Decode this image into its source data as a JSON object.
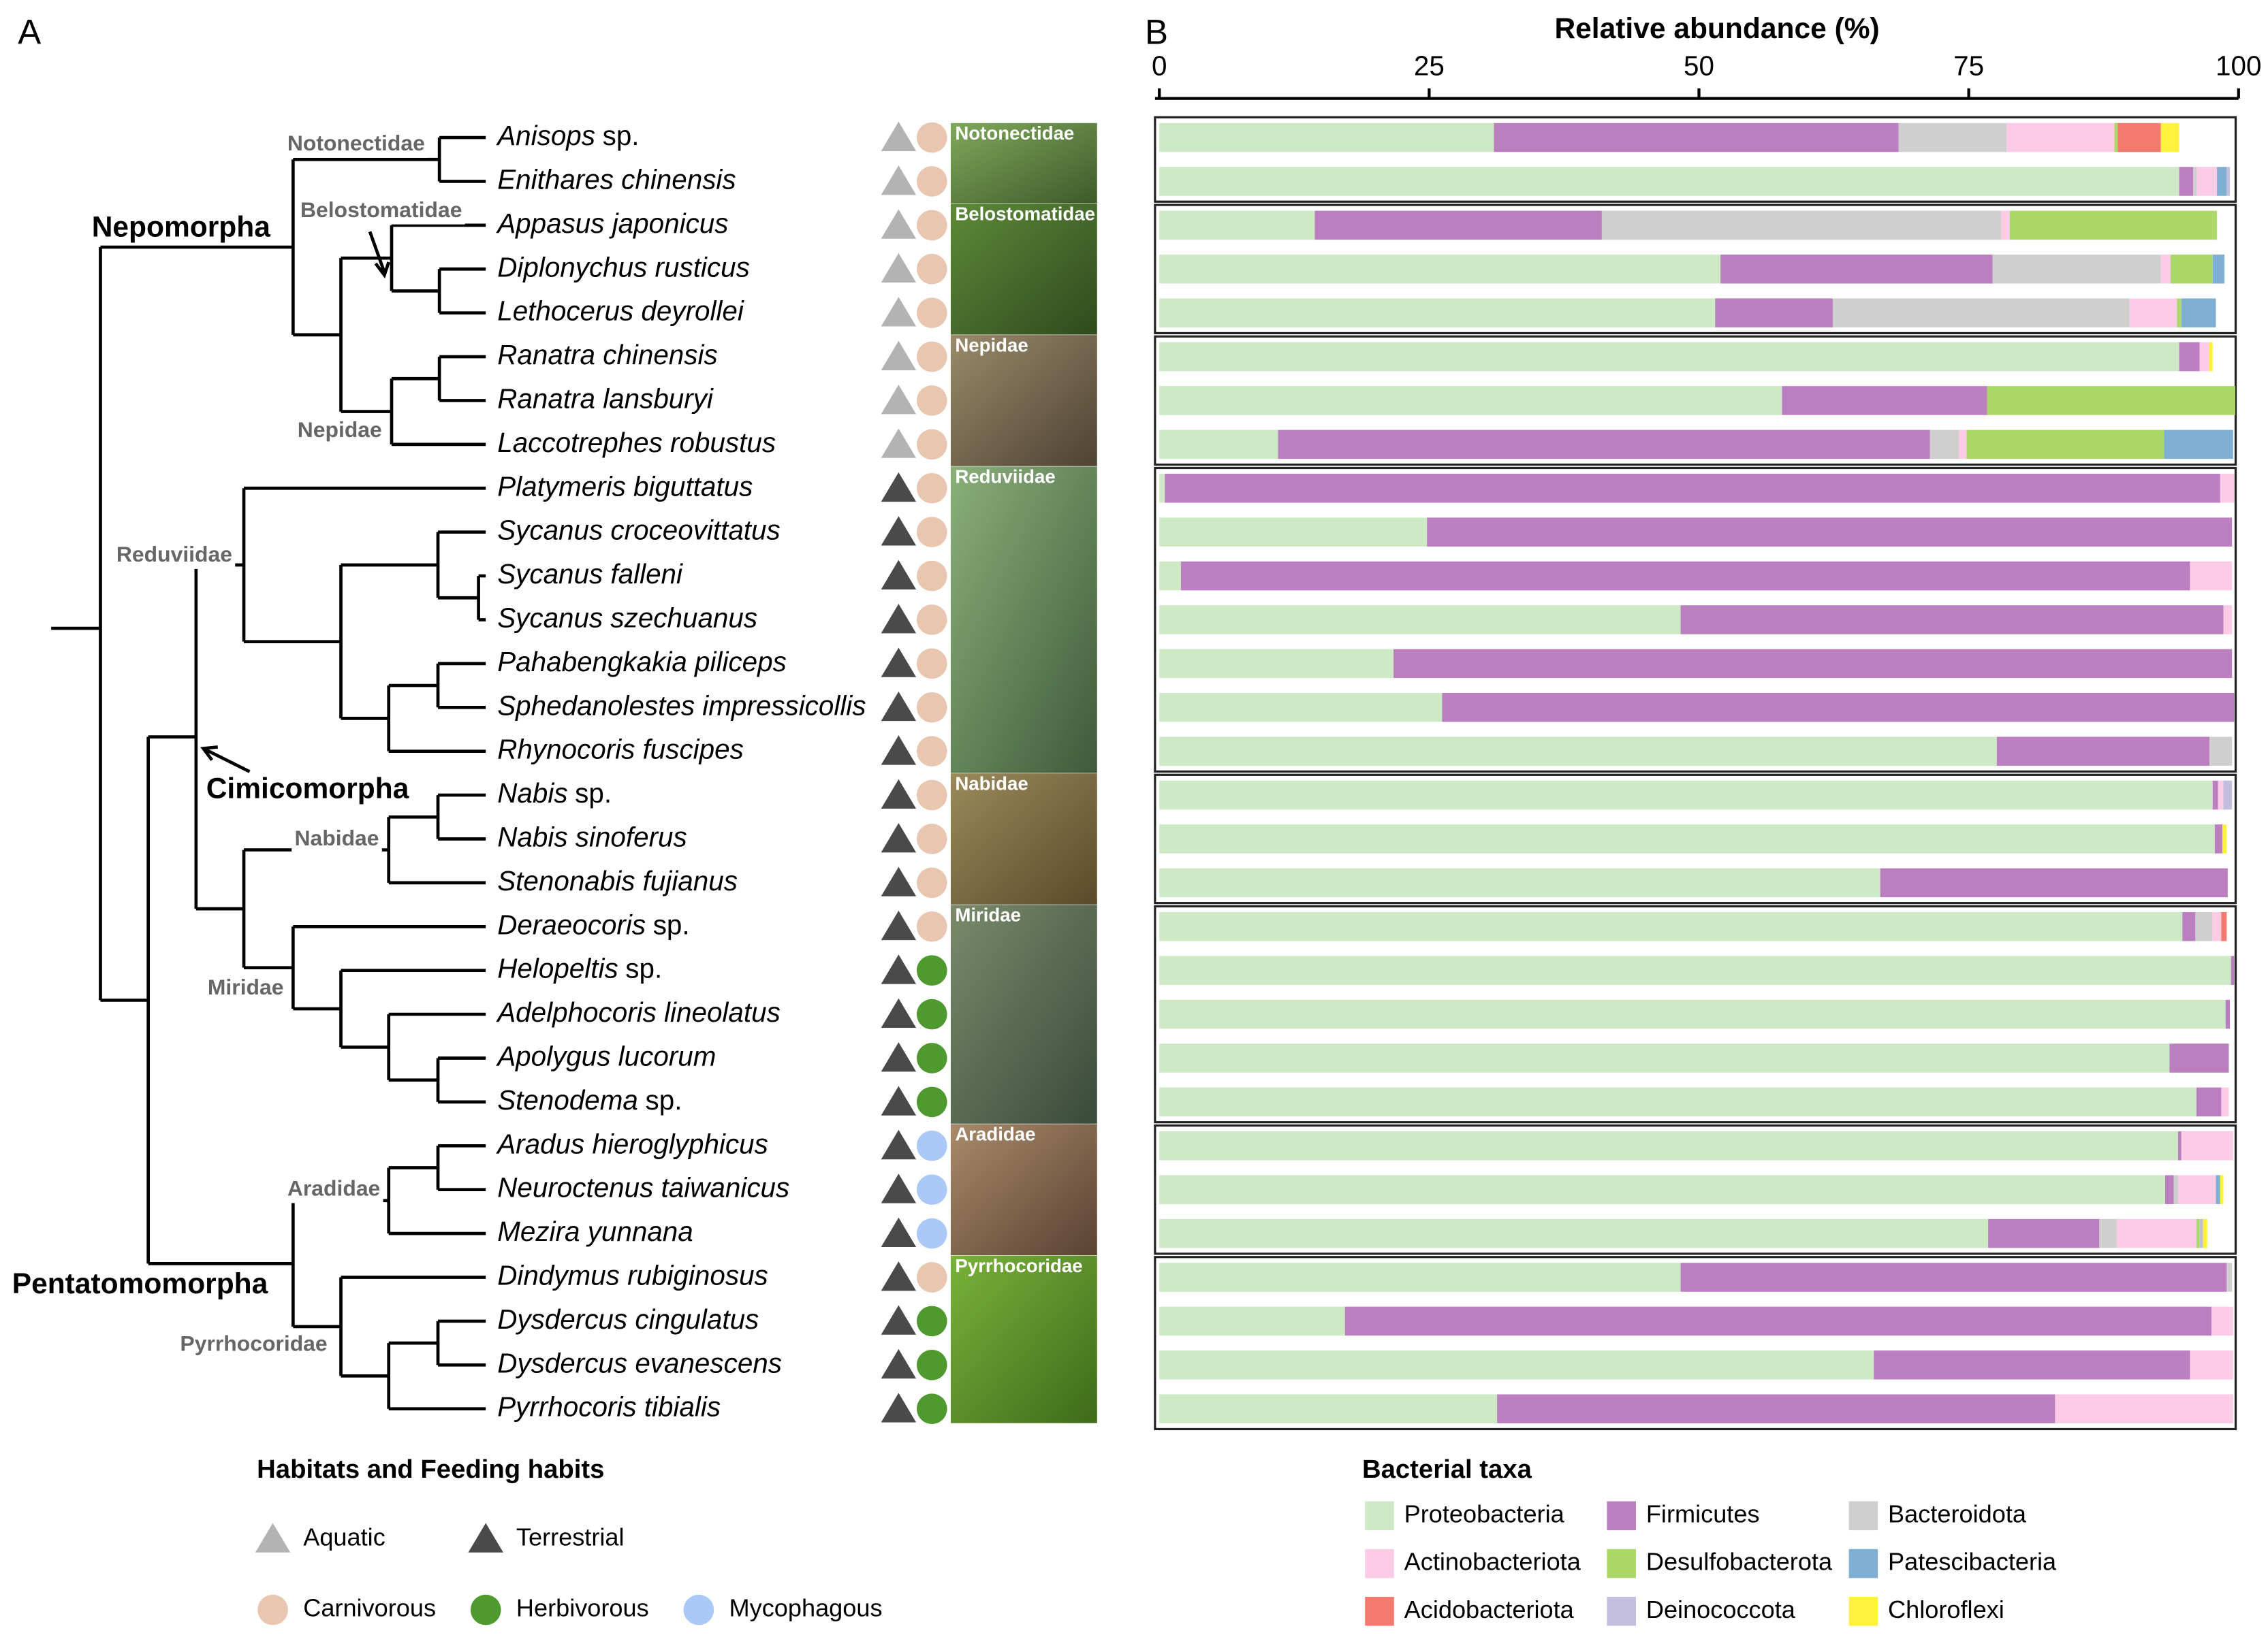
{
  "panel_a": {
    "label": "A",
    "suborders": [
      "Nepomorpha",
      "Cimicomorpha",
      "Pentatomomorpha"
    ],
    "families": [
      "Notonectidae",
      "Belostomatidae",
      "Nepidae",
      "Reduviidae",
      "Nabidae",
      "Miridae",
      "Aradidae",
      "Pyrrhocoridae"
    ],
    "species": [
      {
        "name": "Anisops",
        "suffix": "sp.",
        "habitat": "Aquatic",
        "feeding": "Carnivorous"
      },
      {
        "name": "Enithares chinensis",
        "habitat": "Aquatic",
        "feeding": "Carnivorous"
      },
      {
        "name": "Appasus japonicus",
        "habitat": "Aquatic",
        "feeding": "Carnivorous"
      },
      {
        "name": "Diplonychus rusticus",
        "habitat": "Aquatic",
        "feeding": "Carnivorous"
      },
      {
        "name": "Lethocerus deyrollei",
        "habitat": "Aquatic",
        "feeding": "Carnivorous"
      },
      {
        "name": "Ranatra chinensis",
        "habitat": "Aquatic",
        "feeding": "Carnivorous"
      },
      {
        "name": "Ranatra lansburyi",
        "habitat": "Aquatic",
        "feeding": "Carnivorous"
      },
      {
        "name": "Laccotrephes robustus",
        "habitat": "Aquatic",
        "feeding": "Carnivorous"
      },
      {
        "name": "Platymeris biguttatus",
        "habitat": "Terrestrial",
        "feeding": "Carnivorous"
      },
      {
        "name": "Sycanus croceovittatus",
        "habitat": "Terrestrial",
        "feeding": "Carnivorous"
      },
      {
        "name": "Sycanus falleni",
        "habitat": "Terrestrial",
        "feeding": "Carnivorous"
      },
      {
        "name": "Sycanus szechuanus",
        "habitat": "Terrestrial",
        "feeding": "Carnivorous"
      },
      {
        "name": "Pahabengkakia piliceps",
        "habitat": "Terrestrial",
        "feeding": "Carnivorous"
      },
      {
        "name": "Sphedanolestes impressicollis",
        "habitat": "Terrestrial",
        "feeding": "Carnivorous"
      },
      {
        "name": "Rhynocoris fuscipes",
        "habitat": "Terrestrial",
        "feeding": "Carnivorous"
      },
      {
        "name": "Nabis",
        "suffix": "sp.",
        "habitat": "Terrestrial",
        "feeding": "Carnivorous"
      },
      {
        "name": "Nabis sinoferus",
        "habitat": "Terrestrial",
        "feeding": "Carnivorous"
      },
      {
        "name": "Stenonabis fujianus",
        "habitat": "Terrestrial",
        "feeding": "Carnivorous"
      },
      {
        "name": "Deraeocoris",
        "suffix": "sp.",
        "habitat": "Terrestrial",
        "feeding": "Carnivorous"
      },
      {
        "name": "Helopeltis",
        "suffix": "sp.",
        "habitat": "Terrestrial",
        "feeding": "Herbivorous"
      },
      {
        "name": "Adelphocoris lineolatus",
        "habitat": "Terrestrial",
        "feeding": "Herbivorous"
      },
      {
        "name": "Apolygus lucorum",
        "habitat": "Terrestrial",
        "feeding": "Herbivorous"
      },
      {
        "name": "Stenodema",
        "suffix": "sp.",
        "habitat": "Terrestrial",
        "feeding": "Herbivorous"
      },
      {
        "name": "Aradus hieroglyphicus",
        "habitat": "Terrestrial",
        "feeding": "Mycophagous"
      },
      {
        "name": "Neuroctenus taiwanicus",
        "habitat": "Terrestrial",
        "feeding": "Mycophagous"
      },
      {
        "name": "Mezira yunnana",
        "habitat": "Terrestrial",
        "feeding": "Mycophagous"
      },
      {
        "name": "Dindymus rubiginosus",
        "habitat": "Terrestrial",
        "feeding": "Carnivorous"
      },
      {
        "name": "Dysdercus cingulatus",
        "habitat": "Terrestrial",
        "feeding": "Herbivorous"
      },
      {
        "name": "Dysdercus evanescens",
        "habitat": "Terrestrial",
        "feeding": "Herbivorous"
      },
      {
        "name": "Pyrrhocoris tibialis",
        "habitat": "Terrestrial",
        "feeding": "Herbivorous"
      }
    ],
    "legend_title": "Habitats and Feeding habits",
    "habitats": [
      {
        "name": "Aquatic",
        "color": "#b3b3b3"
      },
      {
        "name": "Terrestrial",
        "color": "#4a4a4a"
      }
    ],
    "feedings": [
      {
        "name": "Carnivorous",
        "color": "#e8c6b0"
      },
      {
        "name": "Herbivorous",
        "color": "#4e9a2e"
      },
      {
        "name": "Mycophagous",
        "color": "#abc9f6"
      }
    ]
  },
  "chart_data": {
    "type": "stacked_barh",
    "label": "B",
    "title": "Relative abundance (%)",
    "xlim": [
      0,
      100
    ],
    "xticks": [
      0,
      25,
      50,
      75,
      100
    ],
    "legend_title": "Bacterial taxa",
    "series": [
      {
        "name": "Proteobacteria",
        "color": "#cde9c6",
        "values": [
          31,
          94.5,
          14.4,
          52,
          51.5,
          94.5,
          57.7,
          11,
          0.5,
          24.8,
          2,
          48.3,
          21.7,
          26.2,
          77.6,
          97.6,
          97.8,
          66.8,
          94.8,
          99.3,
          98.8,
          93.6,
          96.1,
          94.4,
          93.2,
          76.8,
          48.3,
          17.2,
          66.2,
          31.3
        ]
      },
      {
        "name": "Firmicutes",
        "color": "#bb7fbf",
        "values": [
          37.5,
          1.3,
          26.6,
          25.2,
          10.9,
          1.9,
          19,
          60.4,
          97.8,
          74.6,
          93.5,
          50.3,
          77.7,
          73.4,
          19.7,
          0.5,
          0.7,
          32.2,
          1.2,
          0.3,
          0.4,
          5.5,
          2.3,
          0.3,
          0.8,
          10.3,
          50.6,
          80.3,
          29.3,
          51.7
        ]
      },
      {
        "name": "Bacteroidota",
        "color": "#cfcfcf",
        "values": [
          10,
          0.3,
          37,
          15.6,
          27.5,
          0,
          0,
          2.7,
          0,
          0,
          0,
          0,
          0,
          0,
          2.1,
          0,
          0,
          0,
          1.6,
          0,
          0,
          0,
          0,
          0,
          0.4,
          1.6,
          0.5,
          0,
          0,
          0
        ]
      },
      {
        "name": "Actinobacteriota",
        "color": "#fccbe6",
        "values": [
          10,
          1.9,
          0.8,
          0.9,
          4.4,
          0.9,
          0,
          0.7,
          1.3,
          0,
          3.9,
          0.8,
          0,
          0,
          0,
          0.5,
          0,
          0,
          0.8,
          0,
          0,
          0,
          0.7,
          4.8,
          3.5,
          7.4,
          0,
          2,
          4,
          16.5
        ]
      },
      {
        "name": "Desulfobacterota",
        "color": "#acd86a",
        "values": [
          0.3,
          0,
          19.2,
          3.9,
          0.4,
          0,
          23,
          18.3,
          0,
          0,
          0,
          0,
          0,
          0,
          0,
          0,
          0,
          0,
          0,
          0,
          0,
          0,
          0,
          0,
          0,
          0.3,
          0,
          0,
          0,
          0
        ]
      },
      {
        "name": "Patescibacteria",
        "color": "#7fb0d4",
        "values": [
          0,
          0.9,
          0,
          1.1,
          3.2,
          0,
          0,
          6.4,
          0,
          0,
          0,
          0,
          0,
          0,
          0,
          0,
          0,
          0,
          0,
          0,
          0,
          0,
          0,
          0,
          0.4,
          0,
          0,
          0,
          0,
          0
        ]
      },
      {
        "name": "Acidobacteriota",
        "color": "#f47a6e",
        "values": [
          4,
          0,
          0,
          0,
          0,
          0,
          0,
          0,
          0,
          0,
          0,
          0,
          0,
          0,
          0,
          0,
          0,
          0,
          0.5,
          0,
          0,
          0,
          0,
          0,
          0,
          0,
          0,
          0,
          0,
          0
        ]
      },
      {
        "name": "Deinococcota",
        "color": "#c3bedd",
        "values": [
          0,
          0.3,
          0,
          0,
          0,
          0,
          0,
          0,
          0,
          0,
          0,
          0,
          0,
          0,
          0,
          0.8,
          0,
          0,
          0,
          0,
          0,
          0,
          0,
          0,
          0,
          0.3,
          0,
          0,
          0,
          0
        ]
      },
      {
        "name": "Chloroflexi",
        "color": "#fef23e",
        "values": [
          1.7,
          0,
          0,
          0,
          0,
          0.3,
          0,
          0,
          0,
          0,
          0,
          0,
          0,
          0,
          0,
          0,
          0.4,
          0,
          0,
          0,
          0,
          0,
          0,
          0,
          0.3,
          0.4,
          0,
          0,
          0,
          0
        ]
      }
    ]
  }
}
